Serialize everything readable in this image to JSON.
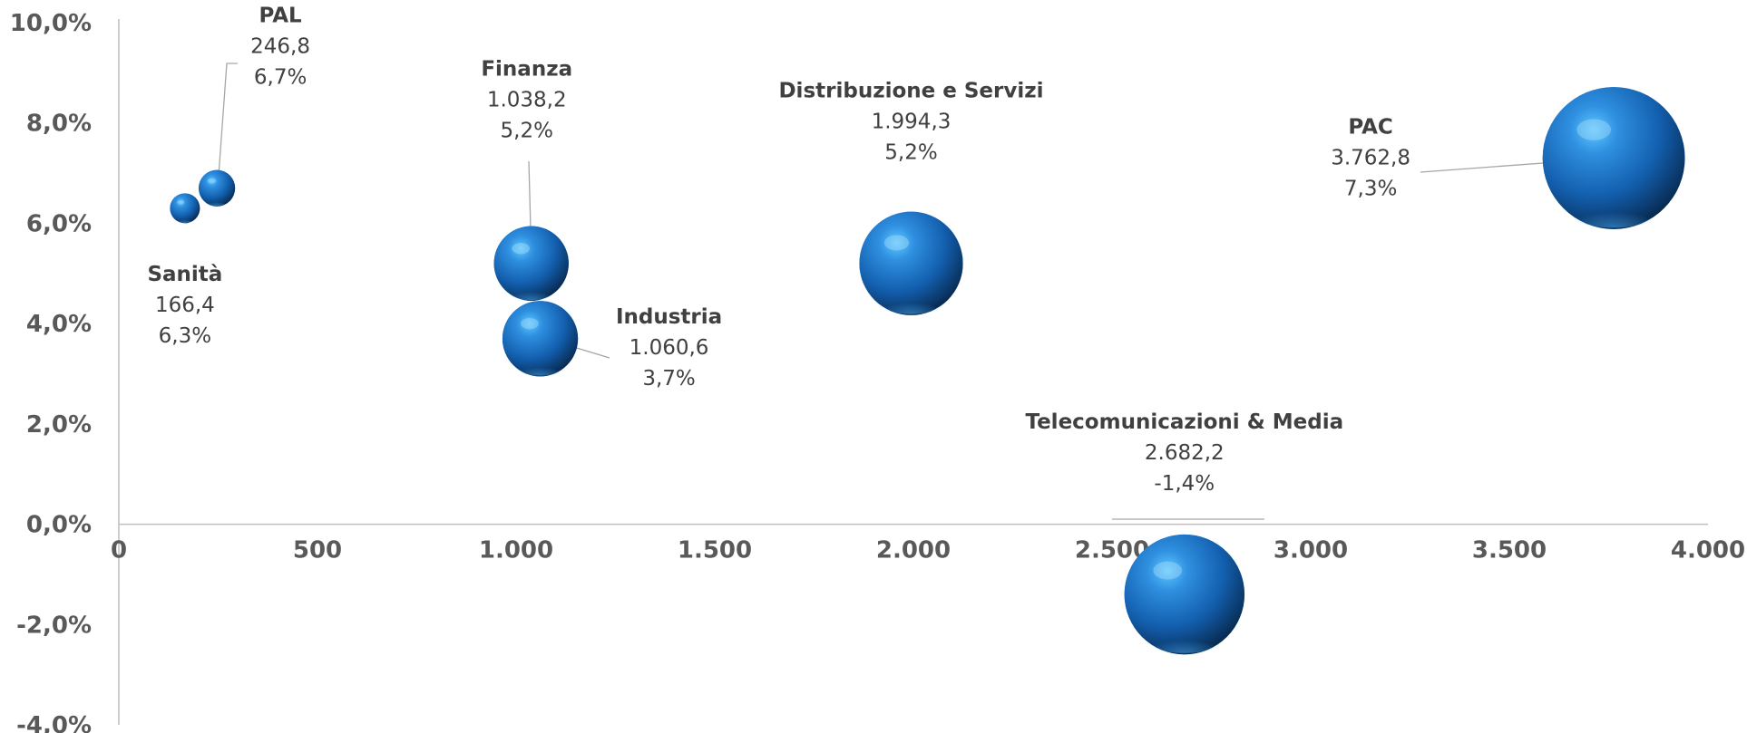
{
  "chart_data": {
    "type": "bubble",
    "x_ticks": [
      "0",
      "500",
      "1.000",
      "1.500",
      "2.000",
      "2.500",
      "3.000",
      "3.500",
      "4.000"
    ],
    "y_ticks": [
      "10,0%",
      "8,0%",
      "6,0%",
      "4,0%",
      "2,0%",
      "0,0%",
      "-2,0%",
      "-4,0%"
    ],
    "xlim": [
      0,
      4000
    ],
    "ylim": [
      -4,
      10
    ],
    "bubble_color": "#1a6fc4",
    "points": [
      {
        "name": "Sanità",
        "x": 166.4,
        "y": 6.3,
        "x_label": "166,4",
        "y_label": "6,3%"
      },
      {
        "name": "PAL",
        "x": 246.8,
        "y": 6.7,
        "x_label": "246,8",
        "y_label": "6,7%"
      },
      {
        "name": "Finanza",
        "x": 1038.2,
        "y": 5.2,
        "x_label": "1.038,2",
        "y_label": "5,2%"
      },
      {
        "name": "Industria",
        "x": 1060.6,
        "y": 3.7,
        "x_label": "1.060,6",
        "y_label": "3,7%"
      },
      {
        "name": "Distribuzione e Servizi",
        "x": 1994.3,
        "y": 5.2,
        "x_label": "1.994,3",
        "y_label": "5,2%"
      },
      {
        "name": "Telecomunicazioni & Media",
        "x": 2682.2,
        "y": -1.4,
        "x_label": "2.682,2",
        "y_label": "-1,4%"
      },
      {
        "name": "PAC",
        "x": 3762.8,
        "y": 7.3,
        "x_label": "3.762,8",
        "y_label": "7,3%"
      }
    ]
  }
}
